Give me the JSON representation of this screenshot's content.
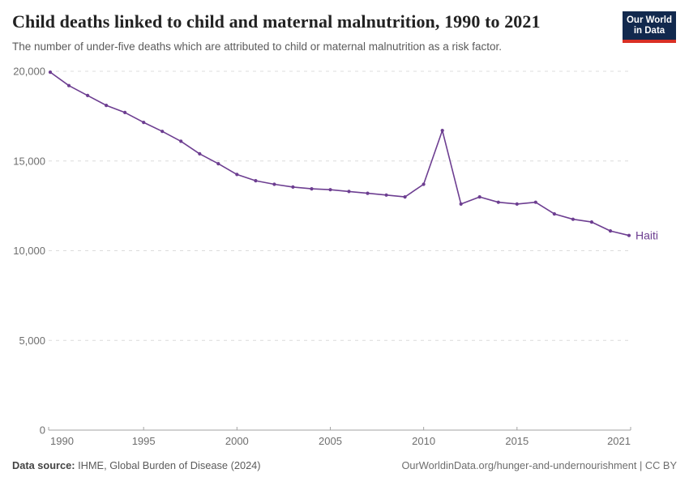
{
  "header": {
    "title": "Child deaths linked to child and maternal malnutrition, 1990 to 2021",
    "subtitle": "The number of under-five deaths which are attributed to child or maternal malnutrition as a risk factor.",
    "logo": {
      "line1": "Our World",
      "line2": "in Data"
    }
  },
  "footer": {
    "source_label": "Data source:",
    "source_text": " IHME, Global Burden of Disease (2024)",
    "credit": "OurWorldinData.org/hunger-and-undernourishment | CC BY"
  },
  "colors": {
    "line": "#6D3E91",
    "entity_label": "#6D3E91",
    "grid": "#dcdcdc",
    "axis": "#a3a3a3",
    "tick_label": "#6e6e6e",
    "logo_bg": "#12294e",
    "logo_stripe": "#d93025"
  },
  "chart_data": {
    "type": "line",
    "title": "Child deaths linked to child and maternal malnutrition, 1990 to 2021",
    "xlabel": "",
    "ylabel": "",
    "grid": "horizontal-dashed",
    "legend": "end-of-line-label",
    "ylim": [
      0,
      20000
    ],
    "yticks": [
      0,
      5000,
      10000,
      15000,
      20000
    ],
    "ytick_labels": [
      "0",
      "5,000",
      "10,000",
      "15,000",
      "20,000"
    ],
    "xticks": [
      1990,
      1995,
      2000,
      2005,
      2010,
      2015,
      2021
    ],
    "xtick_labels": [
      "1990",
      "1995",
      "2000",
      "2005",
      "2010",
      "2015",
      "2021"
    ],
    "x": [
      1990,
      1991,
      1992,
      1993,
      1994,
      1995,
      1996,
      1997,
      1998,
      1999,
      2000,
      2001,
      2002,
      2003,
      2004,
      2005,
      2006,
      2007,
      2008,
      2009,
      2010,
      2011,
      2012,
      2013,
      2014,
      2015,
      2016,
      2017,
      2018,
      2019,
      2020,
      2021
    ],
    "series": [
      {
        "name": "Haiti",
        "color": "#6D3E91",
        "values": [
          19950,
          19200,
          18650,
          18100,
          17700,
          17150,
          16650,
          16100,
          15400,
          14850,
          14250,
          13900,
          13700,
          13550,
          13450,
          13400,
          13300,
          13200,
          13100,
          13000,
          13700,
          16700,
          12600,
          13000,
          12700,
          12600,
          12700,
          12050,
          11750,
          11600,
          11100,
          10850
        ]
      }
    ]
  }
}
